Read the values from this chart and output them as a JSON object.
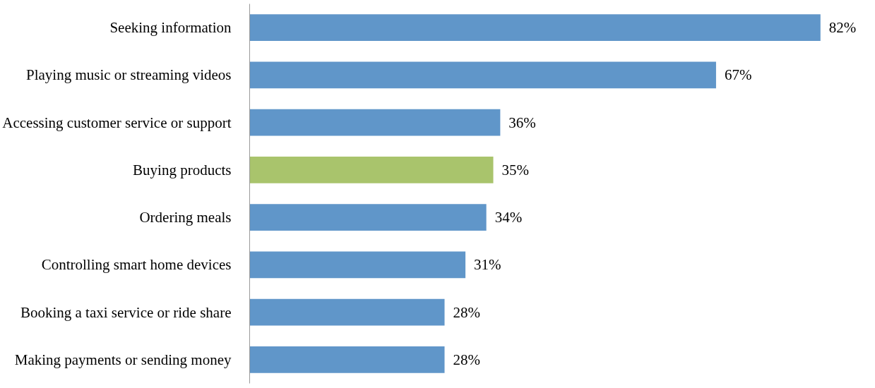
{
  "chart_data": {
    "type": "bar",
    "orientation": "horizontal",
    "categories": [
      "Seeking information",
      "Playing music or streaming videos",
      "Accessing customer service or support",
      "Buying products",
      "Ordering meals",
      "Controlling smart home devices",
      "Booking a taxi service or ride share",
      "Making payments or sending money"
    ],
    "values": [
      82,
      67,
      36,
      35,
      34,
      31,
      28,
      28
    ],
    "colors": [
      "#6096c9",
      "#6096c9",
      "#6096c9",
      "#a9c46c",
      "#6096c9",
      "#6096c9",
      "#6096c9",
      "#6096c9"
    ],
    "value_labels": [
      "82%",
      "67%",
      "36%",
      "35%",
      "34%",
      "31%",
      "28%",
      "28%"
    ],
    "grid": false
  }
}
